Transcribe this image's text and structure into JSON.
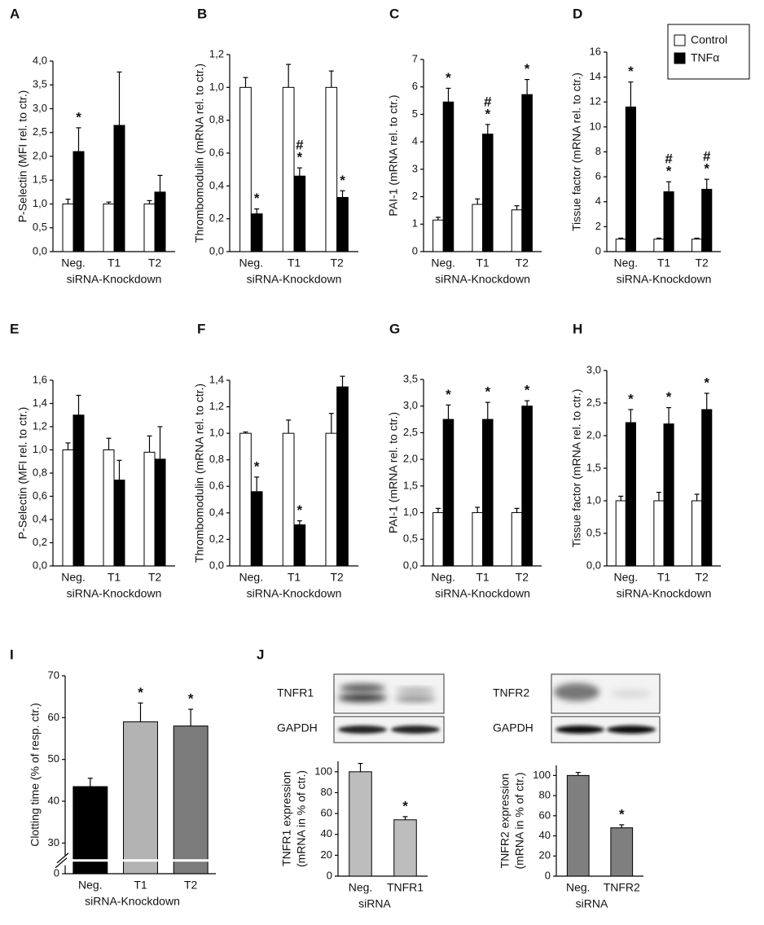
{
  "chart_data": [
    {
      "type": "bar",
      "label": "A",
      "ylabel": "P-Selectin (MFI rel. to ctr.)",
      "xlabel": "siRNA-Knockdown",
      "categories": [
        "Neg.",
        "T1",
        "T2"
      ],
      "ylim": [
        0,
        4
      ],
      "yticks": [
        {
          "value": 0,
          "label": "0,0"
        },
        {
          "value": 0.5,
          "label": "0,5"
        },
        {
          "value": 1,
          "label": "1,0"
        },
        {
          "value": 1.5,
          "label": "1,5"
        },
        {
          "value": 2,
          "label": "2,0"
        },
        {
          "value": 2.5,
          "label": "2,5"
        },
        {
          "value": 3,
          "label": "3,0"
        },
        {
          "value": 3.5,
          "label": "3,5"
        },
        {
          "value": 4,
          "label": "4,0"
        }
      ],
      "series": [
        {
          "color": "#ffffff",
          "values": [
            1.0,
            1.0,
            1.0
          ],
          "errors": [
            0.1,
            0.04,
            0.07
          ],
          "annotations": [
            [],
            [],
            []
          ]
        },
        {
          "color": "#000000",
          "values": [
            2.1,
            2.65,
            1.25
          ],
          "errors": [
            0.5,
            1.12,
            0.35
          ],
          "annotations": [
            [
              "*"
            ],
            [],
            []
          ]
        }
      ]
    },
    {
      "type": "bar",
      "label": "B",
      "ylabel": "Thrombomodulin (mRNA rel. to ctr.)",
      "xlabel": "siRNA-Knockdown",
      "categories": [
        "Neg.",
        "T1",
        "T2"
      ],
      "ylim": [
        0,
        1.2
      ],
      "yticks": [
        {
          "value": 0,
          "label": "0,0"
        },
        {
          "value": 0.2,
          "label": "0,2"
        },
        {
          "value": 0.4,
          "label": "0,4"
        },
        {
          "value": 0.6,
          "label": "0,6"
        },
        {
          "value": 0.8,
          "label": "0,8"
        },
        {
          "value": 1,
          "label": "1,0"
        },
        {
          "value": 1.2,
          "label": "1,2"
        }
      ],
      "series": [
        {
          "color": "#ffffff",
          "values": [
            1.0,
            1.0,
            1.0
          ],
          "errors": [
            0.06,
            0.14,
            0.1
          ],
          "annotations": [
            [],
            [],
            []
          ]
        },
        {
          "color": "#000000",
          "values": [
            0.23,
            0.46,
            0.33
          ],
          "errors": [
            0.03,
            0.05,
            0.04
          ],
          "annotations": [
            [
              "*"
            ],
            [
              "#",
              "*"
            ],
            [
              "*"
            ]
          ]
        }
      ]
    },
    {
      "type": "bar",
      "label": "C",
      "ylabel": "PAI-1 (mRNA rel. to ctr.)",
      "xlabel": "siRNA-Knockdown",
      "categories": [
        "Neg.",
        "T1",
        "T2"
      ],
      "ylim": [
        0,
        7
      ],
      "yticks": [
        0,
        1,
        2,
        3,
        4,
        5,
        6,
        7
      ],
      "series": [
        {
          "color": "#ffffff",
          "values": [
            1.15,
            1.72,
            1.52
          ],
          "errors": [
            0.1,
            0.2,
            0.15
          ],
          "annotations": [
            [],
            [],
            []
          ]
        },
        {
          "color": "#000000",
          "values": [
            5.45,
            4.28,
            5.72
          ],
          "errors": [
            0.5,
            0.35,
            0.55
          ],
          "annotations": [
            [
              "*"
            ],
            [
              "#",
              "*"
            ],
            [
              "*"
            ]
          ]
        }
      ]
    },
    {
      "type": "bar",
      "label": "D",
      "ylabel": "Tissue factor (mRNA rel. to ctr.)",
      "xlabel": "siRNA-Knockdown",
      "categories": [
        "Neg.",
        "T1",
        "T2"
      ],
      "ylim": [
        0,
        16
      ],
      "yticks": [
        0,
        2,
        4,
        6,
        8,
        10,
        12,
        14,
        16
      ],
      "legend": "top-right",
      "series": [
        {
          "name": "Control",
          "color": "#ffffff",
          "values": [
            1.0,
            1.0,
            1.0
          ],
          "errors": [
            0.08,
            0.08,
            0.08
          ],
          "annotations": [
            [],
            [],
            []
          ]
        },
        {
          "name": "TNFα",
          "color": "#000000",
          "values": [
            11.6,
            4.8,
            5.0
          ],
          "errors": [
            2.0,
            0.8,
            0.8
          ],
          "annotations": [
            [
              "*"
            ],
            [
              "#",
              "*"
            ],
            [
              "#",
              "*"
            ]
          ]
        }
      ]
    },
    {
      "type": "bar",
      "label": "E",
      "ylabel": "P-Selectin (MFI rel. to ctr.)",
      "xlabel": "siRNA-Knockdown",
      "categories": [
        "Neg.",
        "T1",
        "T2"
      ],
      "ylim": [
        0,
        1.6
      ],
      "yticks": [
        {
          "value": 0,
          "label": "0,0"
        },
        {
          "value": 0.2,
          "label": "0,2"
        },
        {
          "value": 0.4,
          "label": "0,4"
        },
        {
          "value": 0.6,
          "label": "0,6"
        },
        {
          "value": 0.8,
          "label": "0,8"
        },
        {
          "value": 1,
          "label": "1,0"
        },
        {
          "value": 1.2,
          "label": "1,2"
        },
        {
          "value": 1.4,
          "label": "1,4"
        },
        {
          "value": 1.6,
          "label": "1,6"
        }
      ],
      "series": [
        {
          "color": "#ffffff",
          "values": [
            1.0,
            1.0,
            0.98
          ],
          "errors": [
            0.06,
            0.1,
            0.14
          ],
          "annotations": [
            [],
            [],
            []
          ]
        },
        {
          "color": "#000000",
          "values": [
            1.3,
            0.74,
            0.92
          ],
          "errors": [
            0.17,
            0.17,
            0.28
          ],
          "annotations": [
            [],
            [],
            []
          ]
        }
      ]
    },
    {
      "type": "bar",
      "label": "F",
      "ylabel": "Thrombomodulin (mRNA rel. to ctr.)",
      "xlabel": "siRNA-Knockdown",
      "categories": [
        "Neg.",
        "T1",
        "T2"
      ],
      "ylim": [
        0,
        1.4
      ],
      "yticks": [
        {
          "value": 0,
          "label": "0,0"
        },
        {
          "value": 0.2,
          "label": "0,2"
        },
        {
          "value": 0.4,
          "label": "0,4"
        },
        {
          "value": 0.6,
          "label": "0,6"
        },
        {
          "value": 0.8,
          "label": "0,8"
        },
        {
          "value": 1,
          "label": "1,0"
        },
        {
          "value": 1.2,
          "label": "1,2"
        },
        {
          "value": 1.4,
          "label": "1,4"
        }
      ],
      "series": [
        {
          "color": "#ffffff",
          "values": [
            1.0,
            1.0,
            1.0
          ],
          "errors": [
            0.01,
            0.1,
            0.15
          ],
          "annotations": [
            [],
            [],
            []
          ]
        },
        {
          "color": "#000000",
          "values": [
            0.56,
            0.31,
            1.35
          ],
          "errors": [
            0.11,
            0.03,
            0.08
          ],
          "annotations": [
            [
              "*"
            ],
            [
              "*"
            ],
            []
          ]
        }
      ]
    },
    {
      "type": "bar",
      "label": "G",
      "ylabel": "PAI-1 (mRNA rel. to ctr.)",
      "xlabel": "siRNA-Knockdown",
      "categories": [
        "Neg.",
        "T1",
        "T2"
      ],
      "ylim": [
        0,
        3.5
      ],
      "yticks": [
        {
          "value": 0,
          "label": "0,0"
        },
        {
          "value": 0.5,
          "label": "0,5"
        },
        {
          "value": 1,
          "label": "1,0"
        },
        {
          "value": 1.5,
          "label": "1,5"
        },
        {
          "value": 2,
          "label": "2,0"
        },
        {
          "value": 2.5,
          "label": "2,5"
        },
        {
          "value": 3,
          "label": "3,0"
        },
        {
          "value": 3.5,
          "label": "3,5"
        }
      ],
      "series": [
        {
          "color": "#ffffff",
          "values": [
            1.0,
            1.0,
            1.0
          ],
          "errors": [
            0.08,
            0.1,
            0.08
          ],
          "annotations": [
            [],
            [],
            []
          ]
        },
        {
          "color": "#000000",
          "values": [
            2.75,
            2.75,
            3.0
          ],
          "errors": [
            0.27,
            0.32,
            0.1
          ],
          "annotations": [
            [
              "*"
            ],
            [
              "*"
            ],
            [
              "*"
            ]
          ]
        }
      ]
    },
    {
      "type": "bar",
      "label": "H",
      "ylabel": "Tissue factor (mRNA rel. to ctr.)",
      "xlabel": "siRNA-Knockdown",
      "categories": [
        "Neg.",
        "T1",
        "T2"
      ],
      "ylim": [
        0,
        3
      ],
      "yticks": [
        {
          "value": 0,
          "label": "0,0"
        },
        {
          "value": 0.5,
          "label": "0,5"
        },
        {
          "value": 1,
          "label": "1,0"
        },
        {
          "value": 1.5,
          "label": "1,5"
        },
        {
          "value": 2,
          "label": "2,0"
        },
        {
          "value": 2.5,
          "label": "2,5"
        },
        {
          "value": 3,
          "label": "3,0"
        }
      ],
      "series": [
        {
          "color": "#ffffff",
          "values": [
            1.0,
            1.0,
            1.0
          ],
          "errors": [
            0.07,
            0.13,
            0.1
          ],
          "annotations": [
            [],
            [],
            []
          ]
        },
        {
          "color": "#000000",
          "values": [
            2.2,
            2.18,
            2.4
          ],
          "errors": [
            0.2,
            0.25,
            0.25
          ],
          "annotations": [
            [
              "*"
            ],
            [
              "*"
            ],
            [
              "*"
            ]
          ]
        }
      ]
    },
    {
      "type": "bar",
      "label": "I",
      "ylabel": "Clotting time (% of resp. ctr.)",
      "xlabel": "siRNA-Knockdown",
      "categories": [
        "Neg.",
        "T1",
        "T2"
      ],
      "ylim": [
        0,
        70
      ],
      "yticks": [
        0,
        30,
        40,
        50,
        60,
        70
      ],
      "axis_break": [
        2,
        27
      ],
      "colors": [
        "#000000",
        "#b3b3b3",
        "#7b7b7b"
      ],
      "values": [
        43.5,
        59,
        58
      ],
      "errors": [
        2,
        4.5,
        4
      ],
      "annotations": [
        [],
        [
          "*"
        ],
        [
          "*"
        ]
      ]
    },
    {
      "type": "bar",
      "ylabel": [
        "TNFR1 expression",
        "(mRNA in % of ctr.)"
      ],
      "xlabel": "siRNA",
      "categories": [
        "Neg.",
        "TNFR1"
      ],
      "ylim": [
        0,
        110
      ],
      "yticks": [
        0,
        20,
        40,
        60,
        80,
        100
      ],
      "color": "#bdbdbd",
      "values": [
        100,
        54
      ],
      "errors": [
        8,
        3
      ],
      "annotations": [
        [],
        [
          "*"
        ]
      ]
    },
    {
      "type": "bar",
      "ylabel": [
        "TNFR2 expression",
        "(mRNA in % of ctr.)"
      ],
      "xlabel": "siRNA",
      "categories": [
        "Neg.",
        "TNFR2"
      ],
      "ylim": [
        0,
        110
      ],
      "yticks": [
        0,
        20,
        40,
        60,
        80,
        100
      ],
      "color": "#7f7f7f",
      "values": [
        100,
        48
      ],
      "errors": [
        3,
        3
      ],
      "annotations": [
        [],
        [
          "*"
        ]
      ]
    }
  ],
  "blot_panel": {
    "label": "J",
    "blots": [
      {
        "target": "TNFR1",
        "control": "GAPDH"
      },
      {
        "target": "TNFR2",
        "control": "GAPDH"
      }
    ]
  }
}
